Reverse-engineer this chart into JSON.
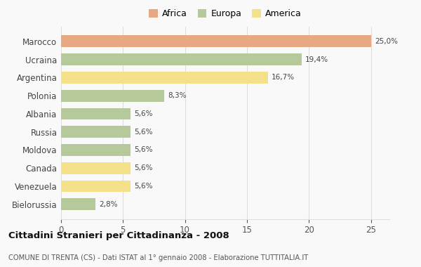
{
  "countries": [
    "Marocco",
    "Ucraina",
    "Argentina",
    "Polonia",
    "Albania",
    "Russia",
    "Moldova",
    "Canada",
    "Venezuela",
    "Bielorussia"
  ],
  "values": [
    25.0,
    19.4,
    16.7,
    8.3,
    5.6,
    5.6,
    5.6,
    5.6,
    5.6,
    2.8
  ],
  "labels": [
    "25,0%",
    "19,4%",
    "16,7%",
    "8,3%",
    "5,6%",
    "5,6%",
    "5,6%",
    "5,6%",
    "5,6%",
    "2,8%"
  ],
  "continents": [
    "Africa",
    "Europa",
    "America",
    "Europa",
    "Europa",
    "Europa",
    "Europa",
    "America",
    "America",
    "Europa"
  ],
  "colors": {
    "Africa": "#E8A882",
    "Europa": "#B5C99A",
    "America": "#F5E08A"
  },
  "legend": [
    {
      "label": "Africa",
      "color": "#E8A882"
    },
    {
      "label": "Europa",
      "color": "#B5C99A"
    },
    {
      "label": "America",
      "color": "#F5E08A"
    }
  ],
  "xlim": [
    0,
    26.5
  ],
  "xticks": [
    0,
    5,
    10,
    15,
    20,
    25
  ],
  "title": "Cittadini Stranieri per Cittadinanza - 2008",
  "subtitle": "COMUNE DI TRENTA (CS) - Dati ISTAT al 1° gennaio 2008 - Elaborazione TUTTITALIA.IT",
  "background_color": "#f9f9f9",
  "grid_color": "#dddddd"
}
